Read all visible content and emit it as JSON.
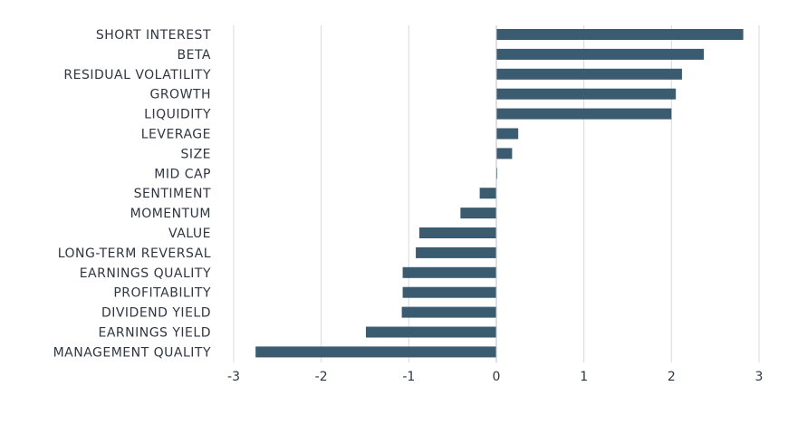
{
  "chart_data": {
    "type": "bar",
    "orientation": "horizontal",
    "title": "",
    "xlabel": "",
    "ylabel": "",
    "xlim": [
      -3,
      3
    ],
    "x_ticks": [
      -3,
      -2,
      -1,
      0,
      1,
      2,
      3
    ],
    "x_tick_labels": [
      "-3",
      "-2",
      "-1",
      "0",
      "1",
      "2",
      "3"
    ],
    "grid": "vertical",
    "legend": "none",
    "bar_color": "#3b5b70",
    "grid_color": "#d9d9d9",
    "zero_line_color": "#bfbfbf",
    "categories": [
      "SHORT INTEREST",
      "BETA",
      "RESIDUAL VOLATILITY",
      "GROWTH",
      "LIQUIDITY",
      "LEVERAGE",
      "SIZE",
      "MID CAP",
      "SENTIMENT",
      "MOMENTUM",
      "VALUE",
      "LONG-TERM REVERSAL",
      "EARNINGS QUALITY",
      "PROFITABILITY",
      "DIVIDEND YIELD",
      "EARNINGS YIELD",
      "MANAGEMENT QUALITY"
    ],
    "values": [
      2.82,
      2.37,
      2.12,
      2.05,
      2.0,
      0.25,
      0.18,
      0.01,
      -0.19,
      -0.41,
      -0.88,
      -0.92,
      -1.07,
      -1.07,
      -1.08,
      -1.49,
      -2.75
    ]
  }
}
